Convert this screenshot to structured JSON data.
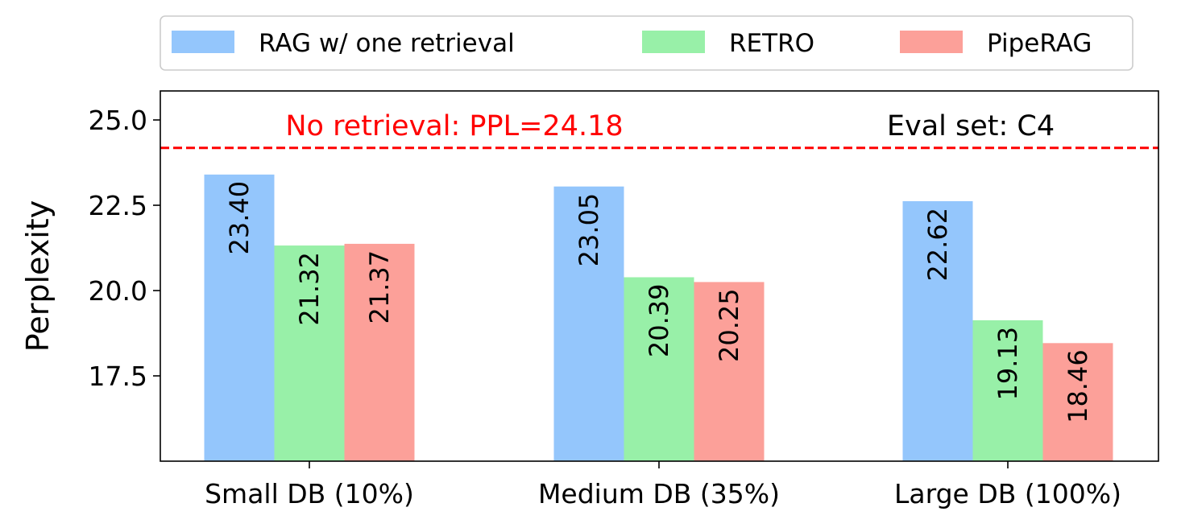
{
  "chart_data": {
    "type": "bar",
    "title": "",
    "xlabel": "",
    "ylabel": "Perplexity",
    "categories": [
      "Small DB (10%)",
      "Medium DB (35%)",
      "Large DB (100%)"
    ],
    "series": [
      {
        "name": "RAG w/ one retrieval",
        "values": [
          23.4,
          23.05,
          22.62
        ],
        "labels": [
          "23.40",
          "23.05",
          "22.62"
        ],
        "color": "#94c6fc"
      },
      {
        "name": "RETRO",
        "values": [
          21.32,
          20.39,
          19.13
        ],
        "labels": [
          "21.32",
          "20.39",
          "19.13"
        ],
        "color": "#98f0a8"
      },
      {
        "name": "PipeRAG",
        "values": [
          21.37,
          20.25,
          18.46
        ],
        "labels": [
          "21.37",
          "20.25",
          "18.46"
        ],
        "color": "#fca099"
      }
    ],
    "ylim": [
      15.0,
      25.85
    ],
    "yticks": [
      17.5,
      20.0,
      22.5,
      25.0
    ],
    "ytick_labels": [
      "17.5",
      "20.0",
      "22.5",
      "25.0"
    ],
    "grid": false,
    "legend_position": "top",
    "reference_line": {
      "value": 24.18,
      "color": "#ff0000",
      "style": "dashed"
    },
    "annotations": {
      "baseline_text": "No retrieval: PPL=24.18",
      "baseline_color": "#ff0000",
      "eval_text": "Eval set: C4"
    }
  }
}
